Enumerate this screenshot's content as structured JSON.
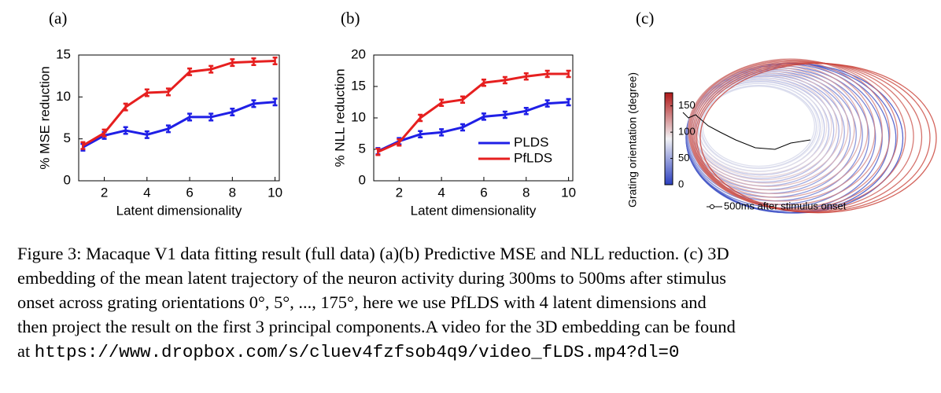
{
  "chart_data": [
    {
      "type": "line",
      "label": "(a)",
      "x_label": "Latent dimensionality",
      "y_label": "% MSE reduction",
      "x": [
        1,
        2,
        3,
        4,
        5,
        6,
        7,
        8,
        9,
        10
      ],
      "series": [
        {
          "name": "PLDS",
          "color": "#1f1fe6",
          "values": [
            4,
            5.4,
            6,
            5.5,
            6.2,
            7.6,
            7.6,
            8.2,
            9.2,
            9.4
          ],
          "errors": [
            0.4,
            0.4,
            0.4,
            0.4,
            0.4,
            0.4,
            0.4,
            0.4,
            0.4,
            0.4
          ]
        },
        {
          "name": "PfLDS",
          "color": "#e61f1f",
          "values": [
            4.2,
            5.7,
            8.8,
            10.5,
            10.6,
            13,
            13.3,
            14.1,
            14.2,
            14.3
          ],
          "errors": [
            0.4,
            0.4,
            0.4,
            0.4,
            0.4,
            0.4,
            0.4,
            0.4,
            0.4,
            0.4
          ]
        }
      ],
      "xlim": [
        0.8,
        10.2
      ],
      "xticks": [
        2,
        4,
        6,
        8,
        10
      ],
      "ylim": [
        0,
        15
      ],
      "yticks": [
        0,
        5,
        10,
        15
      ],
      "legend": false
    },
    {
      "type": "line",
      "label": "(b)",
      "x_label": "Latent dimensionality",
      "y_label": "% NLL reduction",
      "x": [
        1,
        2,
        3,
        4,
        5,
        6,
        7,
        8,
        9,
        10
      ],
      "series": [
        {
          "name": "PLDS",
          "color": "#1f1fe6",
          "values": [
            4.7,
            6.3,
            7.4,
            7.7,
            8.5,
            10.2,
            10.5,
            11.1,
            12.3,
            12.5
          ],
          "errors": [
            0.5,
            0.5,
            0.5,
            0.5,
            0.5,
            0.5,
            0.5,
            0.5,
            0.5,
            0.5
          ]
        },
        {
          "name": "PfLDS",
          "color": "#e61f1f",
          "values": [
            4.6,
            6.1,
            10,
            12.4,
            12.9,
            15.6,
            16,
            16.6,
            17,
            17
          ],
          "errors": [
            0.5,
            0.5,
            0.5,
            0.5,
            0.5,
            0.5,
            0.5,
            0.5,
            0.5,
            0.5
          ]
        }
      ],
      "xlim": [
        0.8,
        10.2
      ],
      "xticks": [
        2,
        4,
        6,
        8,
        10
      ],
      "ylim": [
        0,
        20
      ],
      "yticks": [
        0,
        5,
        10,
        15,
        20
      ],
      "legend": "lower right"
    }
  ],
  "embedding": {
    "label": "(c)",
    "colorbar_label": "Grating orientation (degree)",
    "colorbar_lim": [
      0,
      175
    ],
    "colorbar_ticks": [
      0,
      50,
      100,
      150
    ],
    "legend": "500ms after stimulus onset"
  },
  "caption": {
    "lines": [
      "Figure 3: Macaque V1 data fitting result (full data) (a)(b) Predictive MSE and NLL reduction. (c) 3D",
      "embedding of the mean latent trajectory of the neuron activity during 300ms to 500ms after stimulus",
      "onset across grating orientations 0°, 5°, ..., 175°, here we use PfLDS with 4 latent dimensions and",
      "then project the result on the first 3 principal components.A video for the 3D embedding can be found"
    ],
    "last_prefix": "at",
    "url": "https://www.dropbox.com/s/cluev4fzfsob4q9/video_fLDS.mp4?dl=0"
  }
}
